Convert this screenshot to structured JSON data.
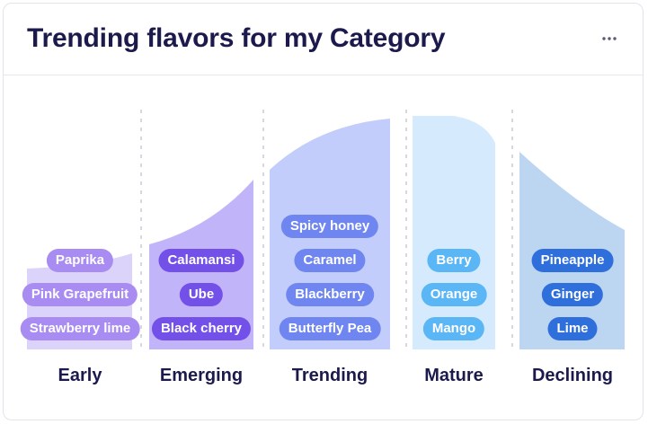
{
  "header": {
    "title": "Trending flavors for my Category",
    "menu_icon": "more-horizontal-icon"
  },
  "stages": [
    {
      "label": "Early",
      "area_color": "#dcd3fb",
      "pill_color": "#a98cf1",
      "flavors": [
        "Paprika",
        "Pink Grapefruit",
        "Strawberry lime"
      ]
    },
    {
      "label": "Emerging",
      "area_color": "#c2b4f8",
      "pill_color": "#7350e8",
      "flavors": [
        "Calamansi",
        "Ube",
        "Black cherry"
      ]
    },
    {
      "label": "Trending",
      "area_color": "#c2cdfb",
      "pill_color": "#6f86f0",
      "flavors": [
        "Spicy honey",
        "Caramel",
        "Blackberry",
        "Butterfly Pea"
      ]
    },
    {
      "label": "Mature",
      "area_color": "#d5ebfd",
      "pill_color": "#5bb6f5",
      "flavors": [
        "Berry",
        "Orange",
        "Mango"
      ]
    },
    {
      "label": "Declining",
      "area_color": "#bcd5f1",
      "pill_color": "#2f6fdc",
      "flavors": [
        "Pineapple",
        "Ginger",
        "Lime"
      ]
    }
  ]
}
